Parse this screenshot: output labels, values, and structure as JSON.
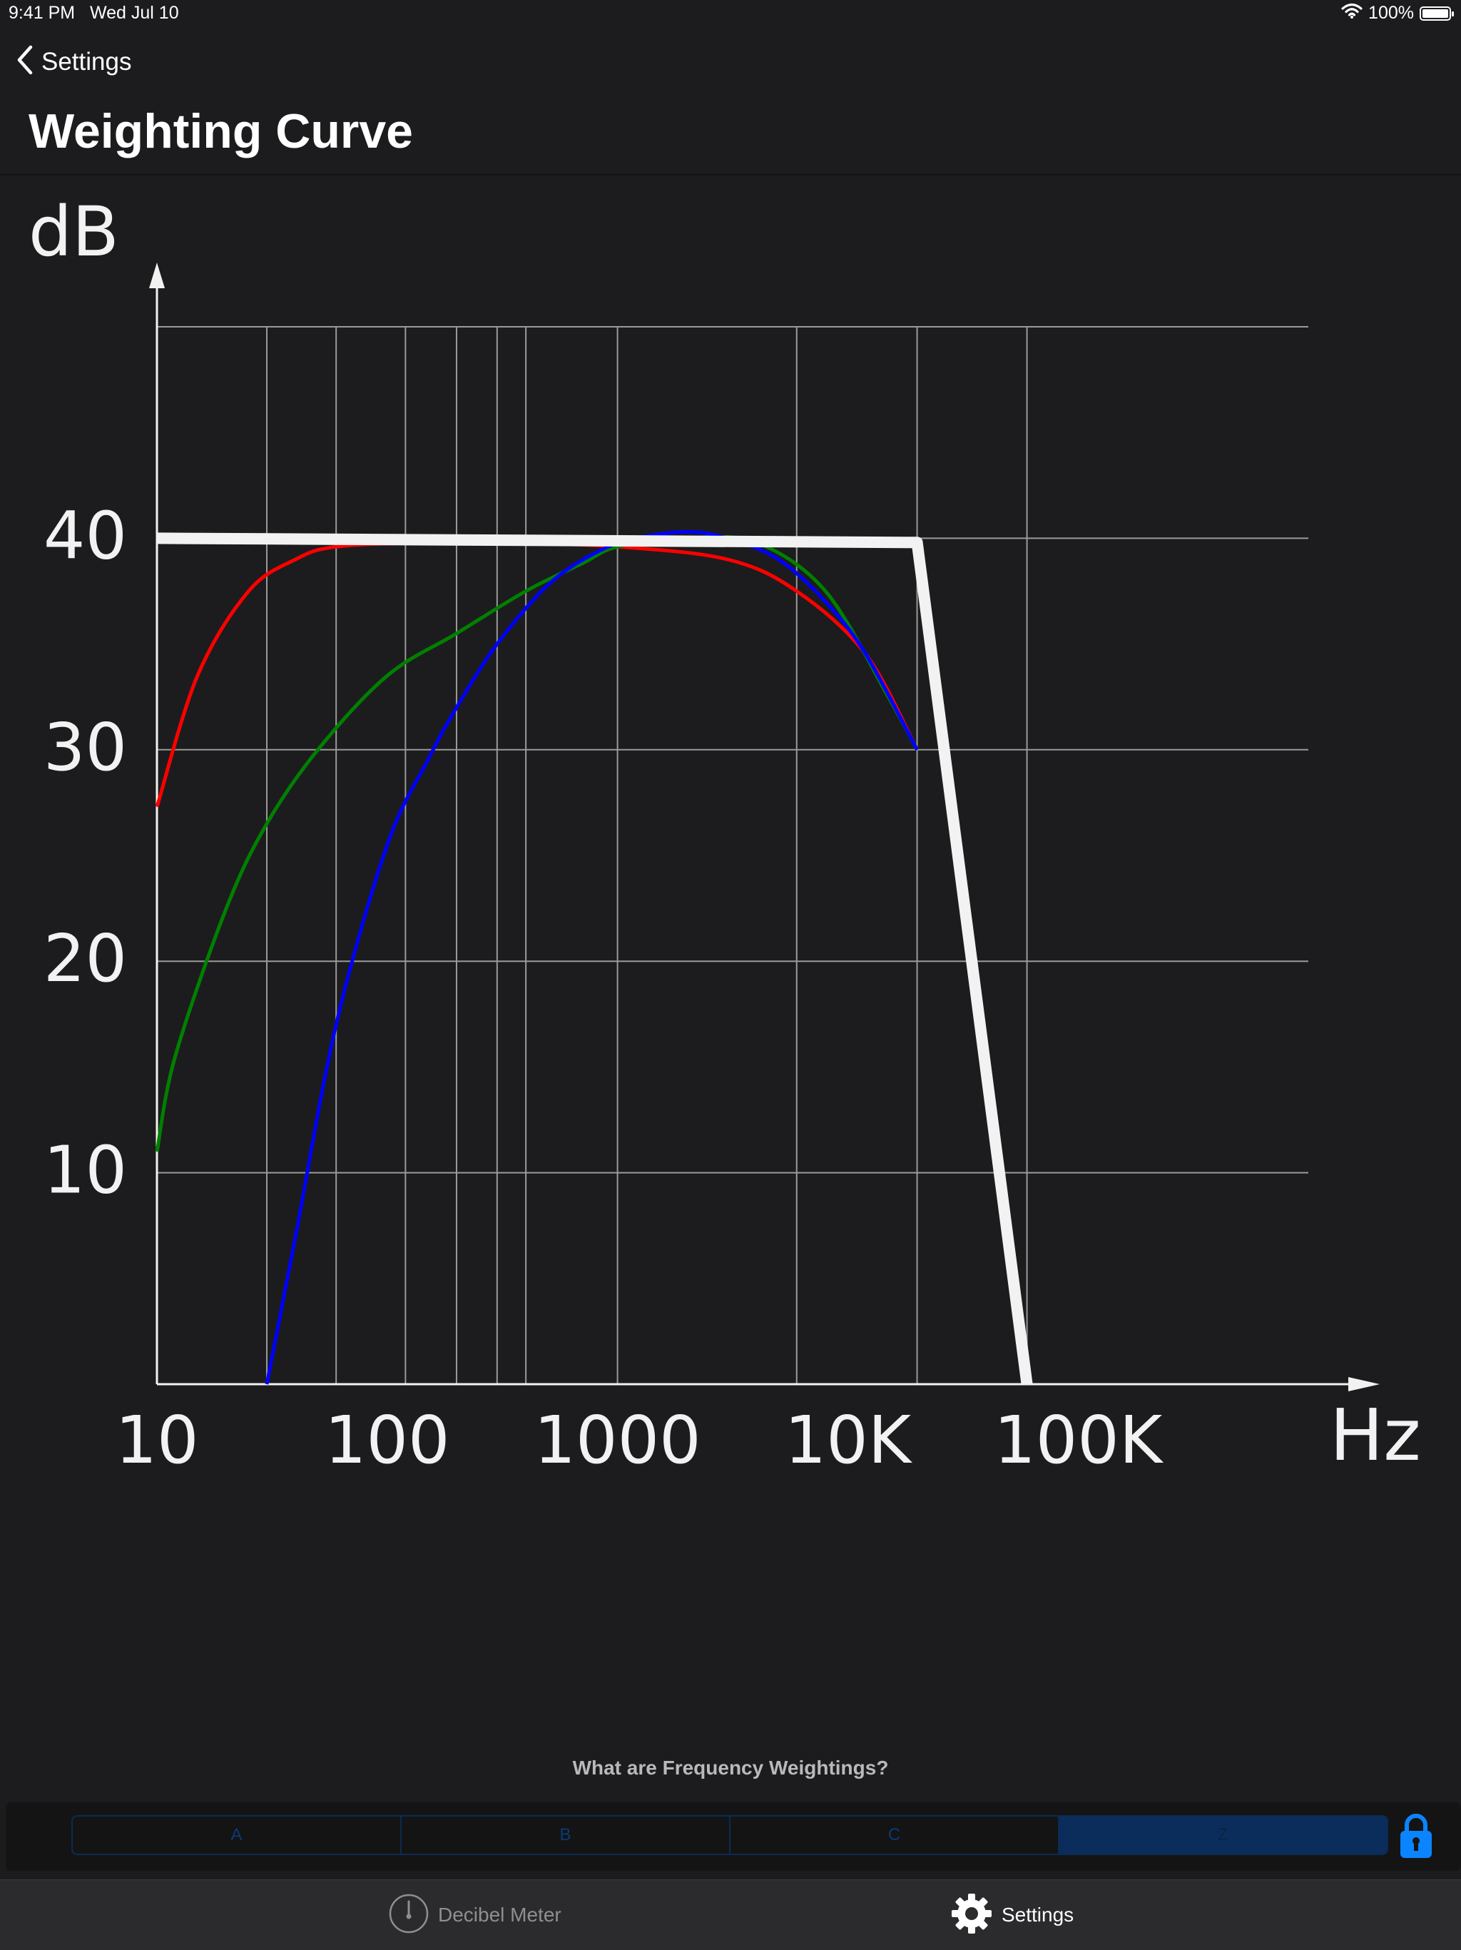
{
  "status_bar": {
    "time": "9:41 PM",
    "date": "Wed Jul 10",
    "battery": "100%"
  },
  "nav": {
    "back_label": "Settings",
    "title": "Weighting Curve"
  },
  "chart_data": {
    "type": "line",
    "ylabel": "dB",
    "xlabel": "Hz",
    "x_ticks": [
      "10",
      "100",
      "1000",
      "10K",
      "100K"
    ],
    "y_ticks": [
      10,
      20,
      30,
      40
    ],
    "x_scale": "log",
    "xlim": [
      10,
      1000000
    ],
    "ylim": [
      0,
      50
    ],
    "grid": true,
    "x_gridlines": [
      30,
      60,
      120,
      200,
      300,
      400,
      1000,
      6000,
      20000,
      60000
    ],
    "series": [
      {
        "color": "#ff0000",
        "x": [
          10,
          15,
          25,
          40,
          60,
          150,
          300,
          1000,
          3000,
          6000,
          12000,
          20000
        ],
        "y": [
          27.3,
          33.5,
          37.5,
          39,
          39.6,
          39.8,
          39.8,
          39.6,
          39,
          37.5,
          34.5,
          30
        ]
      },
      {
        "color": "#008000",
        "x": [
          10,
          12,
          20,
          30,
          50,
          100,
          200,
          400,
          700,
          1000,
          2000,
          4000,
          8000,
          15000,
          20000
        ],
        "y": [
          11,
          15.5,
          22.5,
          26.5,
          30,
          33.5,
          35.5,
          37.5,
          38.8,
          39.6,
          40,
          39.8,
          37.5,
          32.5,
          30
        ]
      },
      {
        "color": "#0000ff",
        "x": [
          30,
          40,
          60,
          100,
          150,
          200,
          300,
          500,
          800,
          1200,
          2000,
          3000,
          5000,
          8000,
          12000,
          20000
        ],
        "y": [
          0,
          7,
          17,
          25.5,
          29.5,
          32,
          35,
          37.8,
          39.3,
          40,
          40.3,
          40,
          39,
          37,
          34.5,
          30
        ]
      },
      {
        "color": "#f2f2f2",
        "x": [
          10,
          20000,
          60000
        ],
        "y": [
          40,
          39.8,
          0
        ]
      }
    ]
  },
  "info_link": "What are Frequency Weightings?",
  "weighting_options": {
    "a": "A",
    "b": "B",
    "c": "C",
    "z": "Z",
    "selected": "Z"
  },
  "tab_bar": {
    "meter_label": "Decibel Meter",
    "settings_label": "Settings",
    "active": "Settings"
  },
  "colors": {
    "accent": "#0a84ff",
    "background": "#1c1c1e",
    "tab_bar": "#2b2b2d",
    "selected_segment": "#0a2d5b"
  }
}
